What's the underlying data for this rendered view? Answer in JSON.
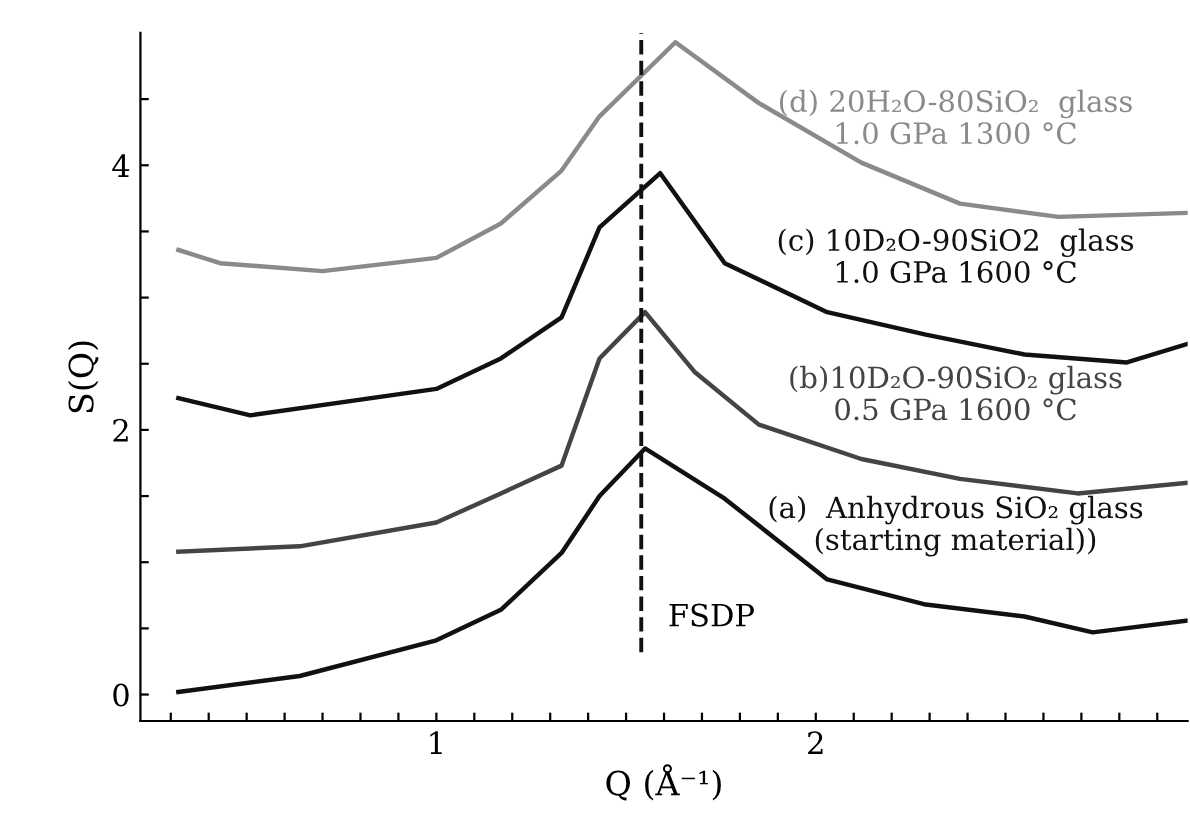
{
  "chart_data": {
    "type": "line",
    "xlabel": "Q (Å⁻¹)",
    "ylabel": "S(Q)",
    "xlim": [
      0.22,
      2.98
    ],
    "ylim": [
      -0.2,
      5.0
    ],
    "xticks": [
      {
        "value": 0.3,
        "label": null
      },
      {
        "value": 0.4,
        "label": null
      },
      {
        "value": 0.5,
        "label": null
      },
      {
        "value": 0.6,
        "label": null
      },
      {
        "value": 0.7,
        "label": null
      },
      {
        "value": 0.8,
        "label": null
      },
      {
        "value": 0.9,
        "label": null
      },
      1,
      {
        "value": 1.1,
        "label": null
      },
      {
        "value": 1.2,
        "label": null
      },
      {
        "value": 1.3,
        "label": null
      },
      {
        "value": 1.4,
        "label": null
      },
      {
        "value": 1.5,
        "label": null
      },
      {
        "value": 1.6,
        "label": null
      },
      {
        "value": 1.7,
        "label": null
      },
      {
        "value": 1.8,
        "label": null
      },
      {
        "value": 1.9,
        "label": null
      },
      2,
      {
        "value": 2.1,
        "label": null
      },
      {
        "value": 2.2,
        "label": null
      },
      {
        "value": 2.3,
        "label": null
      },
      {
        "value": 2.4,
        "label": null
      },
      {
        "value": 2.5,
        "label": null
      },
      {
        "value": 2.6,
        "label": null
      },
      {
        "value": 2.7,
        "label": null
      },
      {
        "value": 2.8,
        "label": null
      },
      {
        "value": 2.9,
        "label": null
      }
    ],
    "yticks": [
      0,
      {
        "value": 0.5,
        "label": null
      },
      {
        "value": 1,
        "label": null
      },
      {
        "value": 1.5,
        "label": null
      },
      2,
      {
        "value": 2.5,
        "label": null
      },
      {
        "value": 3,
        "label": null
      },
      {
        "value": 3.5,
        "label": null
      },
      4,
      {
        "value": 4.5,
        "label": null
      }
    ],
    "grid": false,
    "legend": false,
    "marker": "none",
    "line_style": "solid",
    "series": [
      {
        "name": "(a)  Anhydrous SiO₂ glass\n(starting material))",
        "color": "#111111",
        "x": [
          0.32,
          0.64,
          1.0,
          1.17,
          1.33,
          1.43,
          1.55,
          1.76,
          2.03,
          2.29,
          2.55,
          2.73,
          2.98
        ],
        "values": [
          0.02,
          0.14,
          0.41,
          0.64,
          1.07,
          1.5,
          1.86,
          1.48,
          0.87,
          0.68,
          0.59,
          0.47,
          0.56
        ]
      },
      {
        "name": "(b)10D₂O-90SiO₂ glass\n0.5 GPa 1600 °C",
        "color": "#444444",
        "x": [
          0.32,
          0.64,
          1.0,
          1.17,
          1.33,
          1.43,
          1.55,
          1.68,
          1.85,
          2.12,
          2.38,
          2.69,
          2.98
        ],
        "values": [
          1.08,
          1.12,
          1.3,
          1.52,
          1.73,
          2.54,
          2.89,
          2.44,
          2.04,
          1.78,
          1.63,
          1.52,
          1.6
        ]
      },
      {
        "name": "(c) 10D₂O-90SiO2  glass\n1.0 GPa 1600 °C",
        "color": "#111111",
        "x": [
          0.32,
          0.51,
          1.0,
          1.17,
          1.33,
          1.43,
          1.59,
          1.76,
          2.03,
          2.29,
          2.55,
          2.82,
          2.98
        ],
        "values": [
          2.24,
          2.11,
          2.31,
          2.54,
          2.85,
          3.53,
          3.94,
          3.26,
          2.89,
          2.72,
          2.57,
          2.51,
          2.65
        ]
      },
      {
        "name": "(d) 20H₂O-80SiO₂  glass\n1.0 GPa 1300 °C",
        "color": "#8a8a8a",
        "x": [
          0.32,
          0.43,
          0.7,
          1.0,
          1.17,
          1.33,
          1.43,
          1.63,
          1.85,
          2.12,
          2.38,
          2.64,
          2.98
        ],
        "values": [
          3.36,
          3.26,
          3.2,
          3.3,
          3.56,
          3.96,
          4.37,
          4.93,
          4.47,
          4.02,
          3.71,
          3.61,
          3.64
        ]
      }
    ],
    "ref_lines": [
      {
        "axis": "x",
        "value": 1.54,
        "label": "FSDP",
        "color": "#111111",
        "line_style": "dashed"
      }
    ]
  }
}
